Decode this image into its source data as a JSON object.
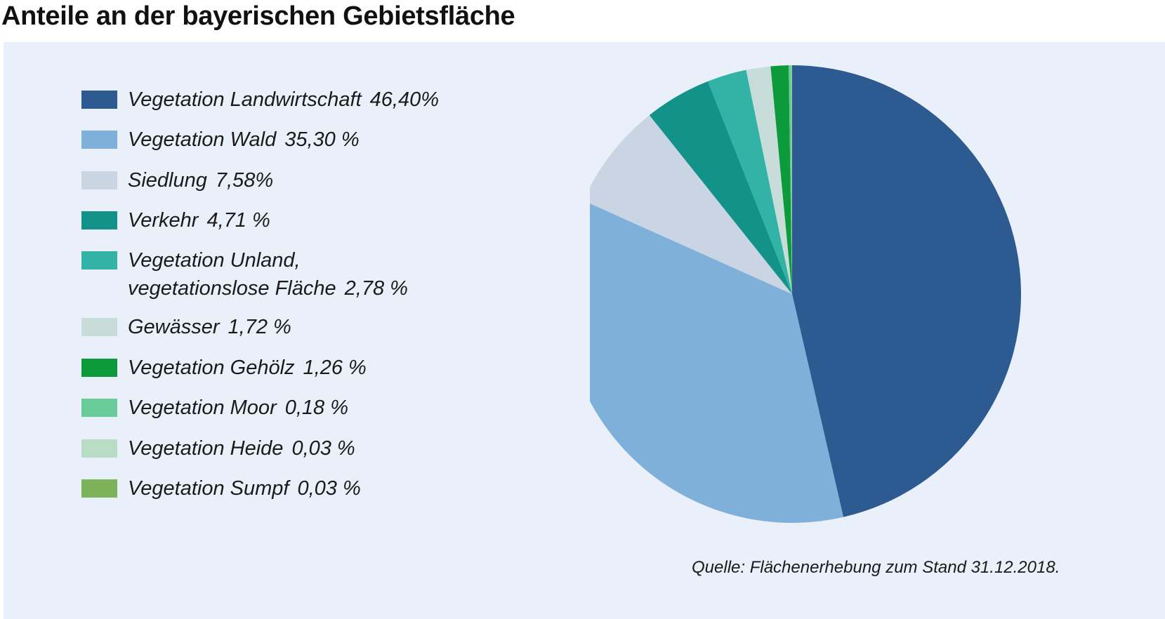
{
  "title": "Anteile an der bayerischen Gebietsfläche",
  "source": "Quelle: Flächenerhebung zum Stand 31.12.2018.",
  "chart_data": {
    "type": "pie",
    "title": "Anteile an der bayerischen Gebietsfläche",
    "start_angle_deg": 0,
    "direction": "clockwise",
    "legend_position": "left",
    "slices": [
      {
        "label": "Vegetation Landwirtschaft",
        "value": 46.4,
        "display": "46,40%",
        "color": "#2c5a91"
      },
      {
        "label": "Vegetation Wald",
        "value": 35.3,
        "display": "35,30 %",
        "color": "#7fb0da"
      },
      {
        "label": "Siedlung",
        "value": 7.58,
        "display": "7,58%",
        "color": "#cad5e3"
      },
      {
        "label": "Verkehr",
        "value": 4.71,
        "display": "4,71 %",
        "color": "#13928a"
      },
      {
        "label": "Vegetation Unland, vegetationslose Fläche",
        "label_lines": [
          "Vegetation Unland,",
          "vegetationslose Fläche"
        ],
        "value": 2.78,
        "display": "2,78 %",
        "color": "#32b3a5"
      },
      {
        "label": "Gewässer",
        "value": 1.72,
        "display": "1,72 %",
        "color": "#c8ddd9"
      },
      {
        "label": "Vegetation Gehölz",
        "value": 1.26,
        "display": "1,26 %",
        "color": "#0d9a3b"
      },
      {
        "label": "Vegetation Moor",
        "value": 0.18,
        "display": "0,18 %",
        "color": "#6acb9a"
      },
      {
        "label": "Vegetation Heide",
        "value": 0.03,
        "display": "0,03 %",
        "color": "#b9dcc4"
      },
      {
        "label": "Vegetation Sumpf",
        "value": 0.03,
        "display": "0,03 %",
        "color": "#7cb35a"
      }
    ]
  }
}
